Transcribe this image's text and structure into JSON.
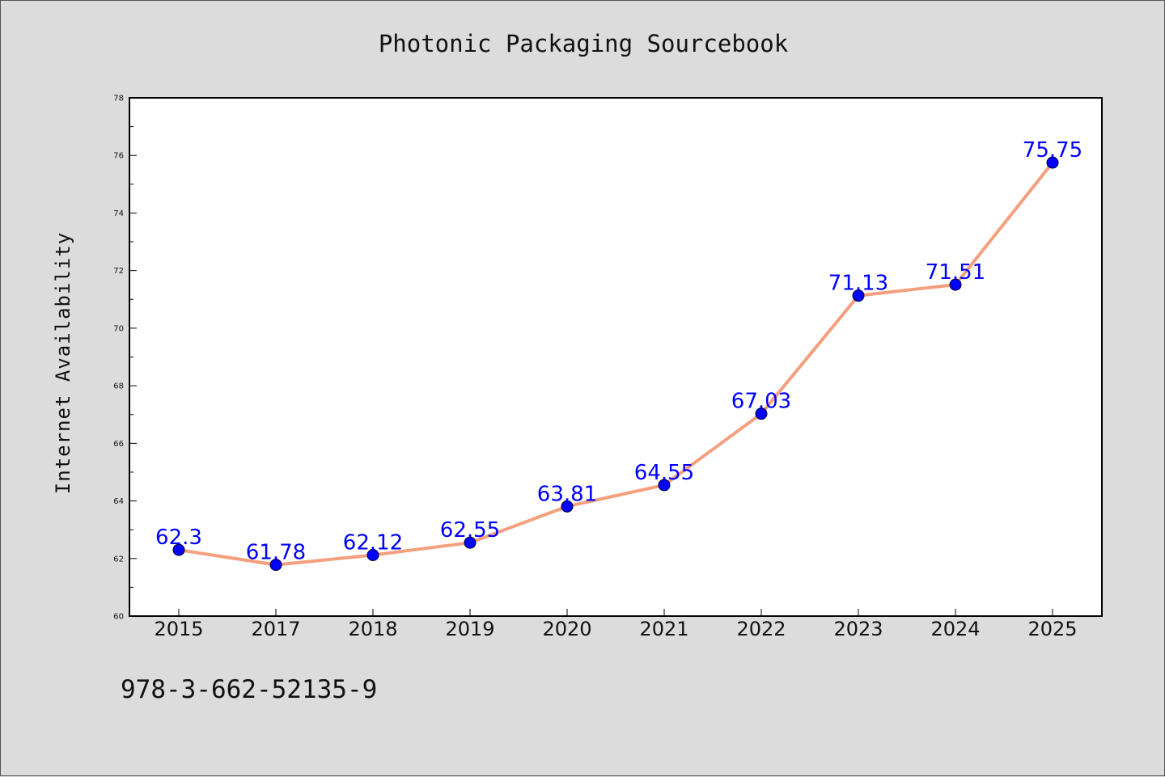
{
  "chart_data": {
    "type": "line",
    "title": "Photonic Packaging Sourcebook",
    "xlabel": "",
    "ylabel": "Internet Availability",
    "categories": [
      "2015",
      "2017",
      "2018",
      "2019",
      "2020",
      "2021",
      "2022",
      "2023",
      "2024",
      "2025"
    ],
    "series": [
      {
        "values": [
          62.3,
          61.78,
          62.12,
          62.55,
          63.81,
          64.55,
          67.03,
          71.13,
          71.51,
          75.75
        ],
        "data_labels": [
          "62.3",
          "61.78",
          "62.12",
          "62.55",
          "63.81",
          "64.55",
          "67.03",
          "71.13",
          "71.51",
          "75.75"
        ],
        "line_color": "#f4a07e",
        "marker_color": "#0000ff"
      }
    ],
    "ylim": [
      60,
      78
    ],
    "yticks": [
      "60",
      "62",
      "64",
      "66",
      "68",
      "70",
      "72",
      "74",
      "76",
      "78"
    ],
    "grid": false,
    "legend": "none"
  },
  "footer": {
    "isbn": "978-3-662-52135-9"
  },
  "colors": {
    "background": "#dcdcdc",
    "plot_area": "#ffffff",
    "line": "#f4a07e",
    "marker": "#0000ff",
    "data_label": "#0000ff"
  }
}
